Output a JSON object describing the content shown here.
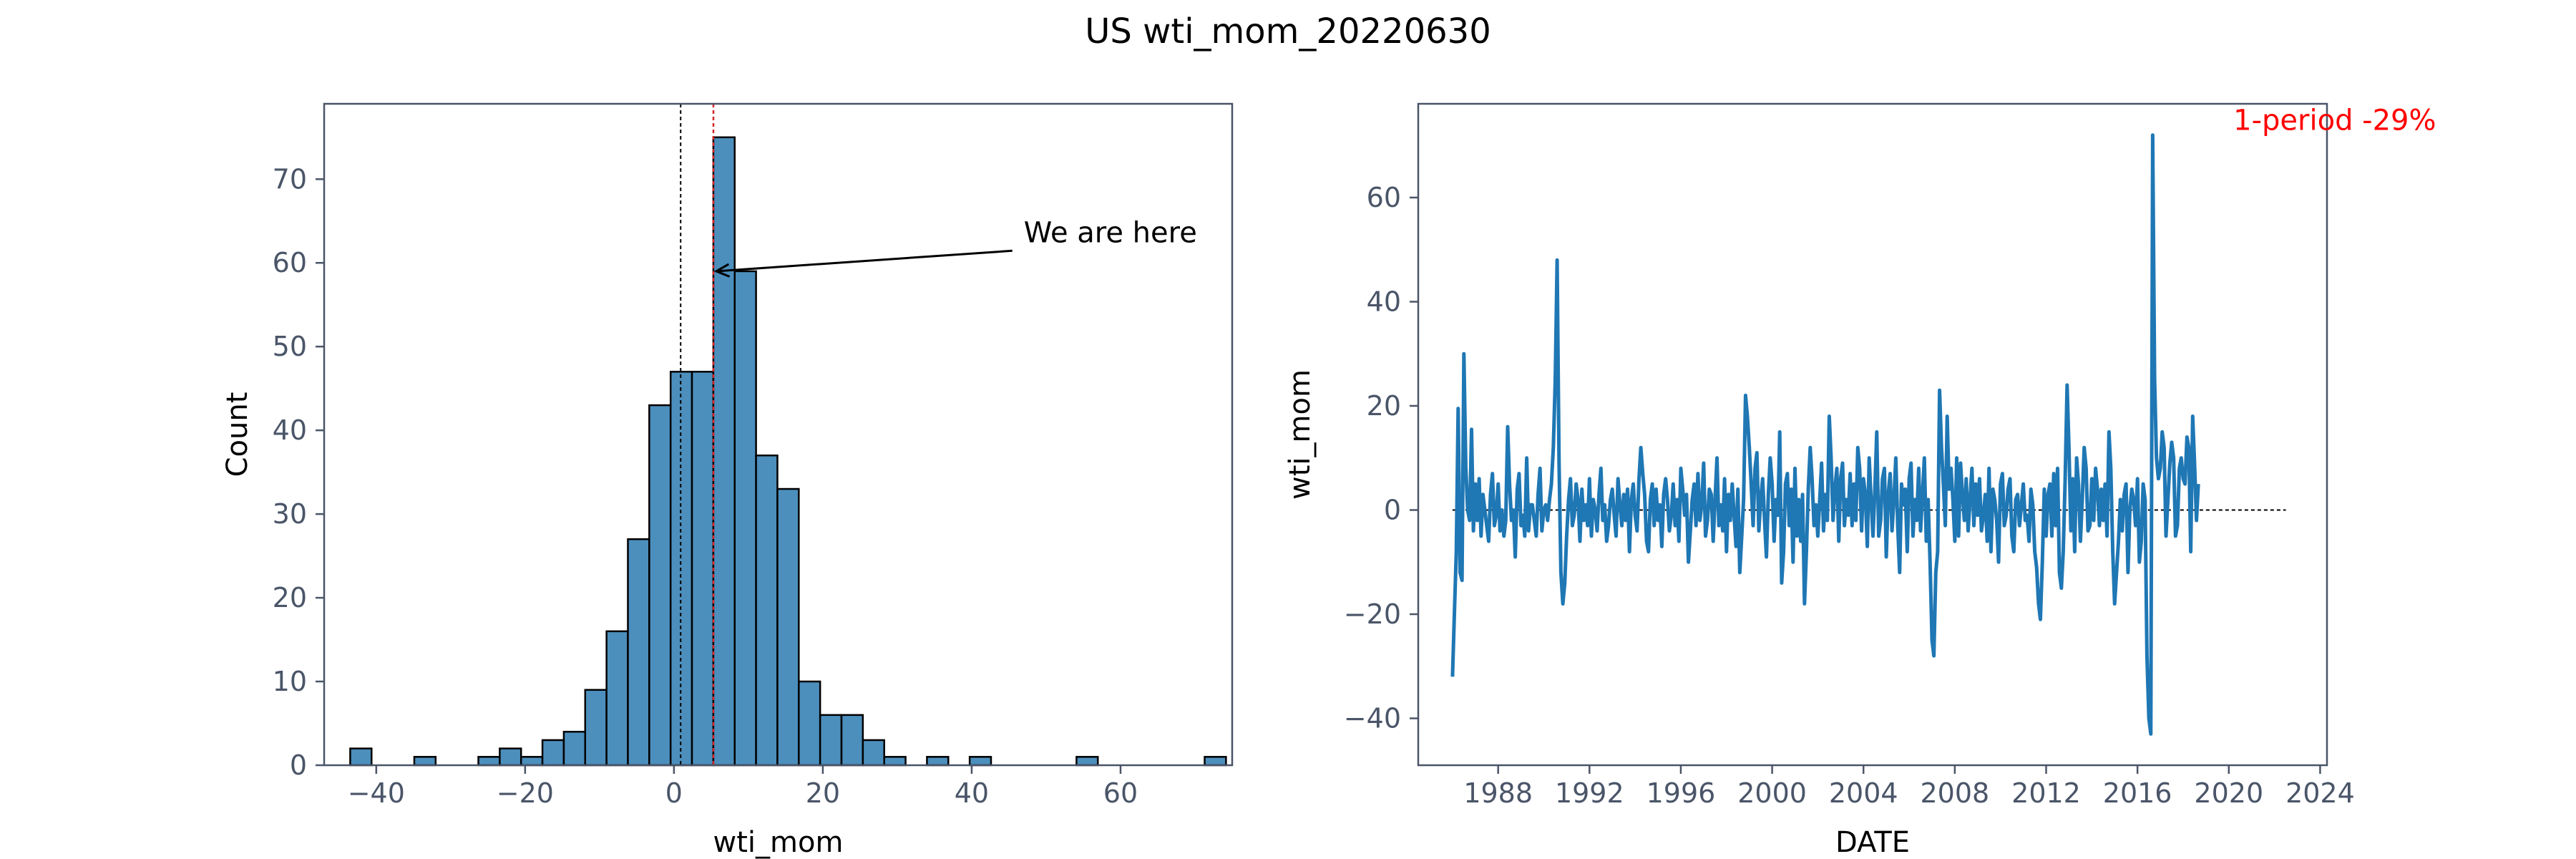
{
  "figure": {
    "title": "US wti_mom_20220630"
  },
  "chart_data": [
    {
      "type": "bar",
      "subtype": "histogram",
      "xlabel": "wti_mom",
      "ylabel": "Count",
      "xlim": [
        -47,
        75
      ],
      "ylim": [
        0,
        79
      ],
      "xticks": [
        -40,
        -20,
        0,
        20,
        40,
        60
      ],
      "yticks": [
        0,
        10,
        20,
        30,
        40,
        50,
        60,
        70
      ],
      "bin_start": -43.5,
      "bin_width": 2.87,
      "bin_counts": [
        2,
        0,
        0,
        1,
        0,
        0,
        1,
        2,
        1,
        3,
        4,
        9,
        16,
        27,
        43,
        47,
        47,
        75,
        59,
        37,
        33,
        10,
        6,
        6,
        3,
        1,
        0,
        1,
        0,
        1,
        0,
        0,
        0,
        0,
        1,
        0,
        0,
        0,
        0,
        0,
        1
      ],
      "bar_color": "#4c8fbd",
      "mean_line_x": 0.9,
      "current_line_x": 5.3,
      "current_line_color": "#d62728",
      "annotation": {
        "text": "We are here",
        "point": [
          5.3,
          59
        ],
        "text_at": [
          47,
          63.5
        ]
      }
    },
    {
      "type": "line",
      "xlabel": "DATE",
      "ylabel": "wti_mom",
      "xlim": [
        1984.5,
        2024.3
      ],
      "ylim": [
        -49,
        78
      ],
      "xticks": [
        1988,
        1992,
        1996,
        2000,
        2004,
        2008,
        2012,
        2016,
        2020,
        2024
      ],
      "yticks": [
        -40,
        -20,
        0,
        20,
        40,
        60
      ],
      "line_color": "#1f77b4",
      "zero_line": 0,
      "annotation_text": "1-period -29%",
      "annotation_color": "#ff0000",
      "annotation_at": [
        2020.2,
        73
      ],
      "series": [
        {
          "x_start": 1986.0,
          "x_step": 0.0833333,
          "values": [
            -32,
            -20,
            -8,
            19.5,
            -12,
            -13.5,
            30,
            8,
            0,
            -2,
            15.5,
            -4,
            5,
            -2,
            6,
            -5,
            3,
            0,
            -3,
            -6,
            3,
            7,
            -3,
            -1,
            5,
            -4,
            0,
            -5,
            -2,
            16,
            5,
            -2,
            0,
            -9,
            4,
            7,
            -3,
            -1,
            -5,
            10,
            -4,
            1,
            1,
            -2,
            -5,
            3,
            8,
            -4,
            0,
            1,
            -2,
            2,
            5,
            12,
            25,
            48,
            9,
            -12,
            -18,
            -14,
            -5,
            2,
            6,
            -3,
            -1,
            5,
            2,
            -6,
            4,
            -2,
            1,
            -3,
            6,
            -5,
            2,
            0,
            -4,
            3,
            8,
            -2,
            1,
            -6,
            -3,
            2,
            4,
            -1,
            -5,
            6,
            1,
            -3,
            3,
            -2,
            4,
            -8,
            2,
            5,
            -1,
            -4,
            6,
            12,
            7,
            3,
            -6,
            -8,
            2,
            5,
            -3,
            4,
            -2,
            1,
            -7,
            3,
            6,
            2,
            -4,
            -1,
            5,
            -3,
            2,
            -6,
            8,
            4,
            -1,
            3,
            -10,
            -4,
            2,
            5,
            -3,
            7,
            -2,
            1,
            9,
            -5,
            -2,
            4,
            3,
            -6,
            2,
            10,
            -3,
            1,
            -4,
            6,
            -8,
            3,
            -2,
            5,
            -1,
            -7,
            4,
            -12,
            -5,
            2,
            22,
            18,
            12,
            5,
            -3,
            8,
            11,
            -4,
            2,
            6,
            -2,
            -9,
            3,
            10,
            5,
            -6,
            2,
            -1,
            15,
            -14,
            -8,
            5,
            7,
            -3,
            4,
            -10,
            8,
            -5,
            2,
            -6,
            3,
            -18,
            -8,
            4,
            12,
            6,
            -3,
            1,
            -5,
            2,
            9,
            -4,
            3,
            -2,
            18,
            10,
            -2,
            4,
            8,
            -6,
            6,
            9,
            -3,
            2,
            -1,
            7,
            -3,
            5,
            -2,
            12,
            8,
            -4,
            6,
            3,
            -7,
            10,
            2,
            -5,
            4,
            15,
            -5,
            -2,
            6,
            8,
            -9,
            3,
            7,
            -4,
            2,
            10,
            -3,
            -12,
            5,
            1,
            4,
            -8,
            6,
            9,
            -5,
            2,
            -2,
            8,
            -4,
            3,
            10,
            -6,
            2,
            -10,
            -25,
            -28,
            -12,
            -8,
            23,
            12,
            5,
            -3,
            18,
            4,
            8,
            2,
            -6,
            10,
            -5,
            9,
            3,
            -2,
            6,
            -4,
            2,
            8,
            -3,
            5,
            -1,
            6,
            -4,
            -1,
            3,
            -6,
            8,
            -8,
            4,
            2,
            -2,
            -10,
            5,
            7,
            -3,
            -1,
            4,
            6,
            -5,
            -8,
            2,
            3,
            -3,
            1,
            5,
            -2,
            -1,
            -6,
            4,
            1,
            -8,
            -11,
            -18,
            -21,
            -10,
            4,
            -5,
            3,
            5,
            -5,
            7,
            -3,
            8,
            -12,
            -15,
            -8,
            6,
            24,
            12,
            -4,
            6,
            -8,
            10,
            5,
            -6,
            2,
            12,
            8,
            -4,
            -3,
            6,
            -2,
            8,
            4,
            -3,
            4,
            -2,
            5,
            -5,
            15,
            8,
            -8,
            -18,
            -12,
            -6,
            2,
            -4,
            3,
            5,
            -12,
            0,
            4,
            2,
            -3,
            6,
            -10,
            -6,
            5,
            2,
            -28,
            -40,
            -43,
            72,
            25,
            10,
            6,
            8,
            15,
            12,
            -5,
            2,
            9,
            13,
            10,
            -5,
            -3,
            8,
            10,
            6,
            5,
            14,
            12,
            -8,
            18,
            9,
            -2,
            5
          ]
        }
      ]
    }
  ]
}
